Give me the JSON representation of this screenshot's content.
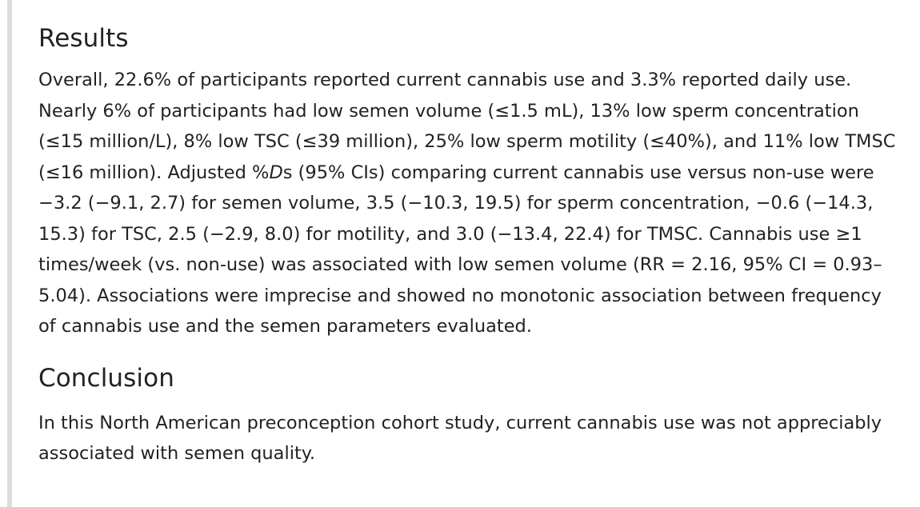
{
  "sections": {
    "results": {
      "heading": "Results",
      "parts": [
        "Overall, 22.6% of participants reported current cannabis use and 3.3% reported daily use. Nearly 6% of participants had low semen volume (≤1.5 mL), 13% low sperm concentration (≤15 million/L), 8% low TSC (≤39 million), 25% low sperm motility (≤40%), and 11% low TMSC (≤16 million). Adjusted %",
        "D",
        "s (95% CIs) comparing current cannabis use versus non-use were −3.2 (−9.1, 2.7) for semen volume, 3.5 (−10.3, 19.5) for sperm concentration, −0.6 (−14.3, 15.3) for TSC, 2.5 (−2.9, 8.0) for motility, and 3.0 (−13.4, 22.4) for TMSC. Cannabis use ≥1 times/week (vs. non-use) was associated with low semen volume (RR = 2.16, 95% CI = 0.93–5.04). Associations were imprecise and showed no monotonic association between frequency of cannabis use and the semen parameters evaluated."
      ]
    },
    "conclusion": {
      "heading": "Conclusion",
      "text": "In this North American preconception cohort study, current cannabis use was not appreciably associated with semen quality."
    }
  }
}
